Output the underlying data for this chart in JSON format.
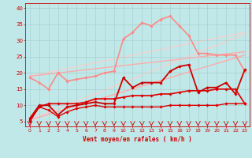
{
  "xlabel": "Vent moyen/en rafales ( km/h )",
  "background_color": "#c0e8e8",
  "grid_color": "#a8d0d0",
  "text_color": "#cc0000",
  "x_ticks": [
    0,
    1,
    2,
    3,
    4,
    5,
    6,
    7,
    8,
    9,
    10,
    11,
    12,
    13,
    14,
    15,
    16,
    17,
    18,
    19,
    20,
    21,
    22,
    23
  ],
  "y_ticks": [
    5,
    10,
    15,
    20,
    25,
    30,
    35,
    40
  ],
  "xlim": [
    -0.5,
    23.5
  ],
  "ylim": [
    3.5,
    41.5
  ],
  "lines": [
    {
      "x": [
        0,
        1,
        2,
        3,
        4,
        5,
        6,
        7,
        8,
        9,
        10,
        11,
        12,
        13,
        14,
        15,
        16,
        17,
        18,
        19,
        20,
        21,
        22,
        23
      ],
      "y": [
        5.0,
        9.5,
        8.5,
        6.5,
        8.0,
        9.0,
        9.5,
        10.0,
        9.5,
        9.5,
        9.5,
        9.5,
        9.5,
        9.5,
        9.5,
        10.0,
        10.0,
        10.0,
        10.0,
        10.0,
        10.0,
        10.5,
        10.5,
        10.5
      ],
      "color": "#dd0000",
      "lw": 1.0,
      "marker": "D",
      "ms": 1.8,
      "zorder": 5
    },
    {
      "x": [
        0,
        1,
        2,
        3,
        4,
        5,
        6,
        7,
        8,
        9,
        10,
        11,
        12,
        13,
        14,
        15,
        16,
        17,
        18,
        19,
        20,
        21,
        22,
        23
      ],
      "y": [
        5.5,
        9.5,
        10.5,
        10.5,
        10.5,
        10.5,
        11.0,
        12.0,
        12.0,
        12.0,
        12.5,
        13.0,
        13.0,
        13.0,
        13.5,
        13.5,
        14.0,
        14.5,
        14.5,
        14.5,
        15.0,
        15.0,
        15.0,
        10.5
      ],
      "color": "#dd0000",
      "lw": 1.2,
      "marker": "D",
      "ms": 1.8,
      "zorder": 4
    },
    {
      "x": [
        0,
        1,
        2,
        3,
        4,
        5,
        6,
        7,
        8,
        9,
        10,
        11,
        12,
        13,
        14,
        15,
        16,
        17,
        18,
        19,
        20,
        21,
        22,
        23
      ],
      "y": [
        6.0,
        10.0,
        10.0,
        7.0,
        9.5,
        10.0,
        10.5,
        11.0,
        10.5,
        10.5,
        18.5,
        15.5,
        17.0,
        17.0,
        17.0,
        20.5,
        22.0,
        22.5,
        14.0,
        15.5,
        15.5,
        17.0,
        13.5,
        21.0
      ],
      "color": "#cc0000",
      "lw": 1.3,
      "marker": "D",
      "ms": 1.8,
      "zorder": 6
    },
    {
      "x": [
        0,
        1,
        2,
        3,
        4,
        5,
        6,
        7,
        8,
        9,
        10,
        11,
        12,
        13,
        14,
        15,
        16,
        17,
        18,
        19,
        20,
        21,
        22,
        23
      ],
      "y": [
        18.5,
        17.0,
        15.0,
        20.0,
        17.5,
        18.0,
        18.5,
        19.0,
        20.0,
        20.5,
        30.5,
        32.5,
        35.5,
        34.5,
        36.5,
        37.5,
        34.5,
        31.5,
        26.0,
        26.0,
        25.5,
        25.5,
        25.5,
        20.5
      ],
      "color": "#ff8888",
      "lw": 1.2,
      "marker": "D",
      "ms": 1.8,
      "zorder": 3
    },
    {
      "x": [
        0,
        23
      ],
      "y": [
        5.5,
        25.5
      ],
      "color": "#ffaaaa",
      "lw": 1.0,
      "marker": null,
      "ms": 0,
      "zorder": 2
    },
    {
      "x": [
        0,
        23
      ],
      "y": [
        19.0,
        26.5
      ],
      "color": "#ffaaaa",
      "lw": 1.0,
      "marker": null,
      "ms": 0,
      "zorder": 2
    },
    {
      "x": [
        0,
        23
      ],
      "y": [
        5.5,
        32.0
      ],
      "color": "#ffcccc",
      "lw": 0.9,
      "marker": null,
      "ms": 0,
      "zorder": 1
    },
    {
      "x": [
        0,
        23
      ],
      "y": [
        19.0,
        32.5
      ],
      "color": "#ffcccc",
      "lw": 0.9,
      "marker": null,
      "ms": 0,
      "zorder": 1
    }
  ]
}
